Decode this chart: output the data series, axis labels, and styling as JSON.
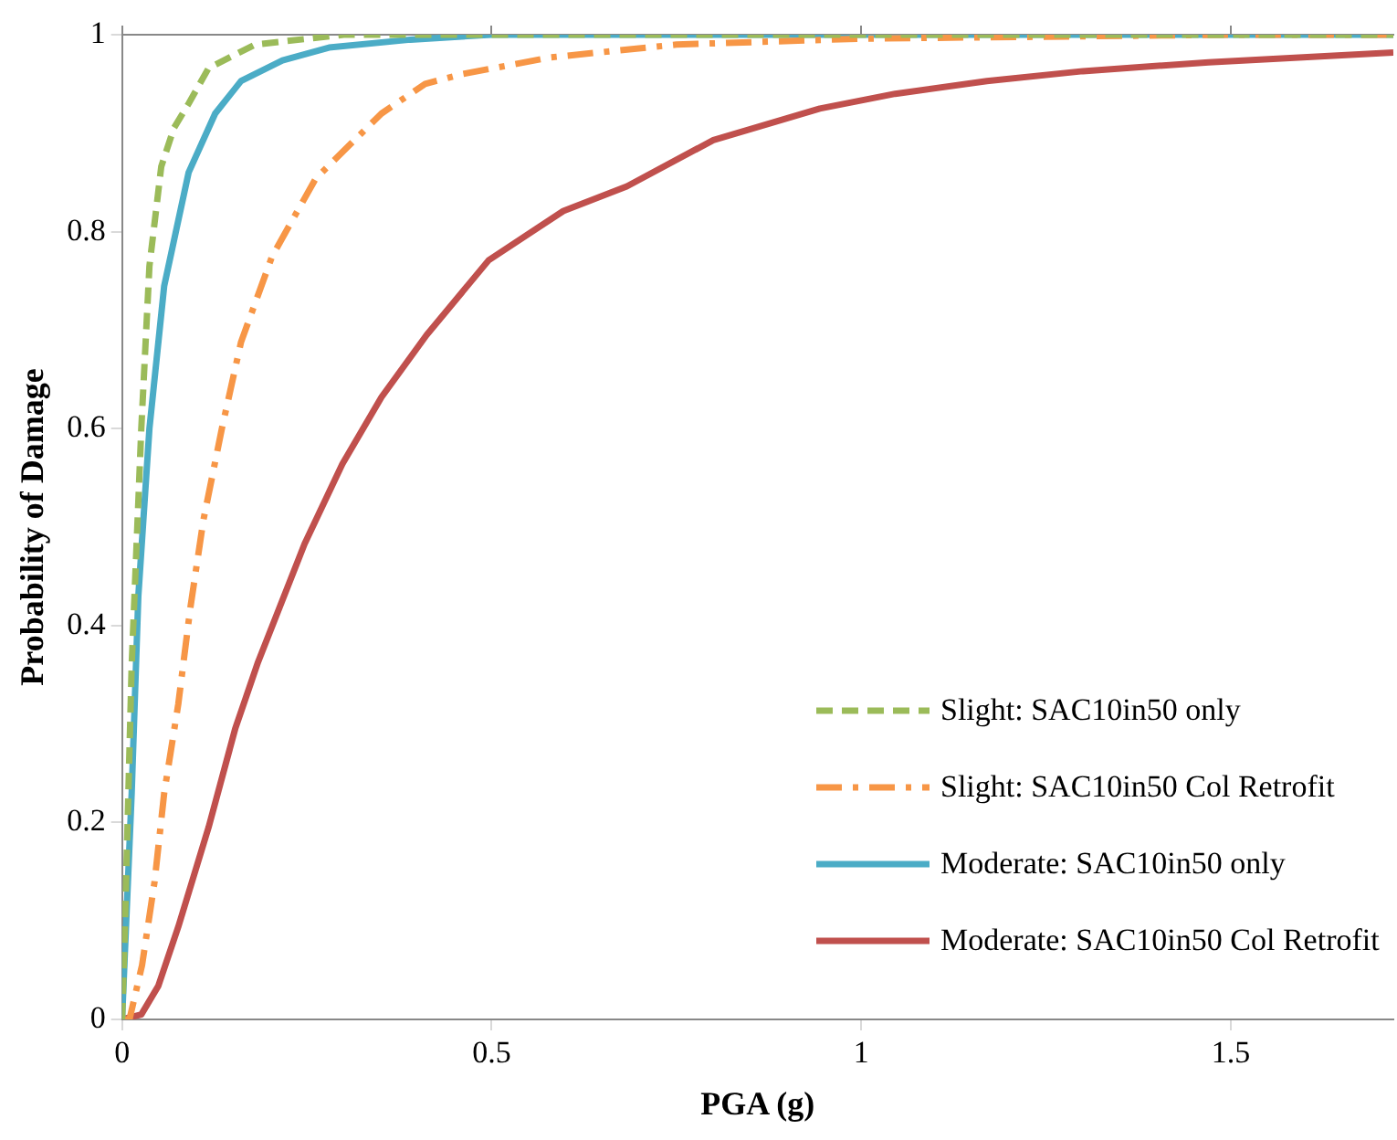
{
  "chart_data": {
    "type": "line",
    "xlabel": "PGA (g)",
    "ylabel": "Probability of Damage",
    "xlim": [
      0,
      1.72
    ],
    "xticks": [
      0,
      0.5,
      1,
      1.5
    ],
    "ylim": [
      0,
      1
    ],
    "yticks": [
      0,
      0.2,
      0.4,
      0.6,
      0.8,
      1
    ],
    "grid": false,
    "legend": "bottom right",
    "marker": "none",
    "series": [
      {
        "name": "Slight: SAC10in50 only",
        "color": "#9bbb59",
        "line_style": "dashed",
        "x": [
          0,
          0.003,
          0.013,
          0.026,
          0.037,
          0.053,
          0.07,
          0.09,
          0.117,
          0.18,
          0.3,
          0.5,
          1,
          1.72
        ],
        "values": [
          0,
          0.07,
          0.36,
          0.6,
          0.765,
          0.866,
          0.905,
          0.93,
          0.966,
          0.99,
          1,
          1,
          1,
          1
        ]
      },
      {
        "name": "Slight: SAC10in50 Col Retrofit",
        "color": "#f79646",
        "line_style": "dashdot",
        "x": [
          0,
          0.01,
          0.027,
          0.044,
          0.057,
          0.076,
          0.092,
          0.11,
          0.135,
          0.161,
          0.203,
          0.262,
          0.351,
          0.41,
          0.46,
          0.58,
          0.75,
          1,
          1.5,
          1.72
        ],
        "values": [
          0,
          0,
          0.055,
          0.14,
          0.23,
          0.32,
          0.416,
          0.507,
          0.6,
          0.688,
          0.775,
          0.854,
          0.92,
          0.95,
          0.96,
          0.977,
          0.99,
          0.996,
          1,
          1
        ]
      },
      {
        "name": "Moderate: SAC10in50 only",
        "color": "#4bacc6",
        "line_style": "solid",
        "x": [
          0,
          0.013,
          0.022,
          0.037,
          0.057,
          0.09,
          0.126,
          0.161,
          0.217,
          0.28,
          0.39,
          0.5,
          1,
          1.72
        ],
        "values": [
          0,
          0.23,
          0.43,
          0.6,
          0.745,
          0.86,
          0.92,
          0.953,
          0.974,
          0.987,
          0.995,
          1,
          1,
          1
        ]
      },
      {
        "name": "Moderate: SAC10in50 Col Retrofit",
        "color": "#c0504d",
        "line_style": "solid",
        "x": [
          0,
          0.026,
          0.049,
          0.076,
          0.117,
          0.153,
          0.184,
          0.247,
          0.298,
          0.351,
          0.412,
          0.496,
          0.597,
          0.683,
          0.8,
          0.944,
          1.046,
          1.17,
          1.3,
          1.47,
          1.72
        ],
        "values": [
          0,
          0.005,
          0.034,
          0.094,
          0.195,
          0.295,
          0.363,
          0.483,
          0.564,
          0.632,
          0.695,
          0.771,
          0.821,
          0.846,
          0.893,
          0.925,
          0.94,
          0.953,
          0.963,
          0.972,
          0.982
        ]
      }
    ]
  }
}
